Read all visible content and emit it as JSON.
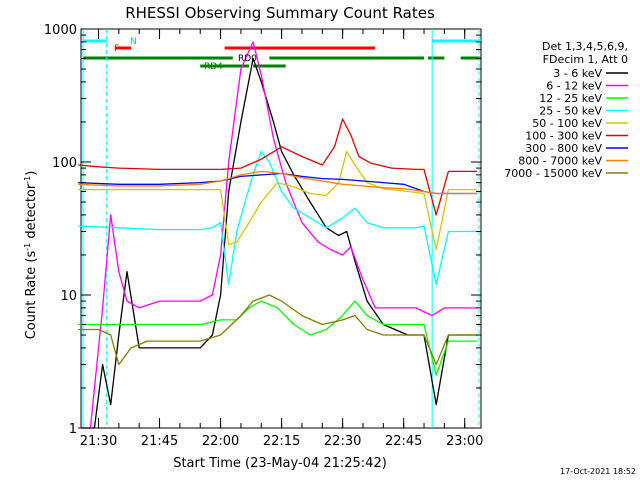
{
  "chart_data": {
    "type": "line",
    "title": "RHESSI Observing Summary Count Rates",
    "xlabel": "Start Time (23-May-04 21:25:42)",
    "ylabel_main": "Count Rate (s",
    "ylabel_sup1": "-1",
    "ylabel_mid": " detector",
    "ylabel_sup2": "-1",
    "ylabel_end": ")",
    "y_scale": "log",
    "ylim": [
      1,
      1000
    ],
    "xlim": [
      "21:25:42",
      "23:04:00"
    ],
    "x_ticks": [
      "21:30",
      "21:45",
      "22:00",
      "22:15",
      "22:30",
      "22:45",
      "23:00"
    ],
    "y_ticks": [
      "1",
      "10",
      "100",
      "1000"
    ],
    "legend_header": [
      "Det 1,3,4,5,6,9,",
      "FDecim 1, Att 0"
    ],
    "footer_date": "17-Oct-2021 18:52",
    "flag_labels": {
      "n": "N",
      "f": "F",
      "rd0": "RD0",
      "rd4": "RD4"
    },
    "colors": {
      "band_3_6": "#000000",
      "band_6_12": "#ff00ff",
      "band_12_25": "#00ff00",
      "band_25_50": "#00ffff",
      "band_50_100": "#d2c800",
      "band_100_300": "#e80000",
      "band_300_800": "#0000ff",
      "band_800_7000": "#ff8000",
      "band_7000_15000": "#808000",
      "saa_flag": "#00ffff",
      "flare_flag": "#ff0000",
      "decim_flag": "#008000"
    },
    "series": [
      {
        "name": "3 - 6 keV",
        "color": "#000000",
        "x": [
          "21:25",
          "21:29",
          "21:31",
          "21:33",
          "21:35",
          "21:37",
          "21:40",
          "21:45",
          "21:55",
          "21:58",
          "22:00",
          "22:02",
          "22:05",
          "22:08",
          "22:10",
          "22:13",
          "22:15",
          "22:18",
          "22:22",
          "22:26",
          "22:29",
          "22:31",
          "22:33",
          "22:36",
          "22:40",
          "22:46",
          "22:50",
          "22:53",
          "22:56",
          "23:00",
          "23:03"
        ],
        "y": [
          1,
          1,
          3,
          1.5,
          5,
          15,
          4,
          4,
          4,
          5,
          10,
          60,
          200,
          600,
          400,
          200,
          120,
          80,
          50,
          32,
          28,
          30,
          18,
          9,
          6,
          5,
          5,
          1.5,
          5,
          5,
          5
        ]
      },
      {
        "name": "6 - 12 keV",
        "color": "#ff00ff",
        "x": [
          "21:25",
          "21:28",
          "21:31",
          "21:33",
          "21:35",
          "21:37",
          "21:40",
          "21:45",
          "21:55",
          "21:58",
          "22:00",
          "22:02",
          "22:05",
          "22:08",
          "22:10",
          "22:13",
          "22:16",
          "22:20",
          "22:24",
          "22:27",
          "22:30",
          "22:32",
          "22:35",
          "22:38",
          "22:42",
          "22:45",
          "22:48",
          "22:52",
          "22:55",
          "23:00",
          "23:03"
        ],
        "y": [
          1,
          1,
          8,
          40,
          15,
          9,
          8,
          9,
          9,
          10,
          20,
          100,
          500,
          800,
          450,
          150,
          70,
          35,
          25,
          22,
          20,
          23,
          13,
          8,
          8,
          8,
          8,
          7,
          8,
          8,
          8
        ]
      },
      {
        "name": "12 - 25 keV",
        "color": "#00ff00",
        "x": [
          "21:25",
          "21:35",
          "21:45",
          "21:55",
          "22:00",
          "22:04",
          "22:07",
          "22:10",
          "22:14",
          "22:18",
          "22:22",
          "22:26",
          "22:30",
          "22:33",
          "22:36",
          "22:40",
          "22:46",
          "22:50",
          "22:53",
          "22:56",
          "23:00",
          "23:03"
        ],
        "y": [
          6,
          6,
          6,
          6,
          6.5,
          6.5,
          8,
          9,
          8,
          6,
          5,
          5.5,
          7,
          9,
          7,
          6,
          6,
          6,
          2.5,
          4.5,
          4.5,
          4.5
        ]
      },
      {
        "name": "25 - 50 keV",
        "color": "#00ffff",
        "x": [
          "21:25",
          "21:35",
          "21:45",
          "21:55",
          "21:58",
          "22:00",
          "22:02",
          "22:04",
          "22:06",
          "22:08",
          "22:10",
          "22:12",
          "22:15",
          "22:18",
          "22:22",
          "22:26",
          "22:30",
          "22:33",
          "22:36",
          "22:40",
          "22:45",
          "22:48",
          "22:50",
          "22:53",
          "22:56",
          "23:00",
          "23:03"
        ],
        "y": [
          33,
          32,
          31,
          31,
          32,
          35,
          12,
          30,
          50,
          80,
          120,
          100,
          60,
          45,
          38,
          32,
          38,
          45,
          35,
          32,
          32,
          32,
          33,
          12,
          30,
          30,
          30
        ]
      },
      {
        "name": "50 - 100 keV",
        "color": "#d2c800",
        "x": [
          "21:25",
          "21:35",
          "21:45",
          "21:55",
          "22:00",
          "22:02",
          "22:04",
          "22:07",
          "22:10",
          "22:14",
          "22:18",
          "22:22",
          "22:26",
          "22:29",
          "22:31",
          "22:33",
          "22:36",
          "22:40",
          "22:46",
          "22:50",
          "22:53",
          "22:56",
          "23:00",
          "23:03"
        ],
        "y": [
          62,
          62,
          62,
          62,
          62,
          24,
          25,
          35,
          50,
          70,
          65,
          58,
          56,
          70,
          120,
          95,
          70,
          63,
          60,
          58,
          22,
          62,
          62,
          62
        ]
      },
      {
        "name": "100 - 300 keV",
        "color": "#e80000",
        "x": [
          "21:25",
          "21:30",
          "21:35",
          "21:45",
          "21:55",
          "22:00",
          "22:05",
          "22:10",
          "22:15",
          "22:20",
          "22:25",
          "22:28",
          "22:30",
          "22:32",
          "22:34",
          "22:37",
          "22:42",
          "22:48",
          "22:50",
          "22:53",
          "22:56",
          "23:00",
          "23:03"
        ],
        "y": [
          95,
          92,
          90,
          88,
          88,
          88,
          90,
          105,
          130,
          110,
          95,
          130,
          210,
          160,
          110,
          98,
          90,
          88,
          88,
          40,
          85,
          85,
          85
        ]
      },
      {
        "name": "300 - 800 keV",
        "color": "#0000ff",
        "x": [
          "21:25",
          "21:35",
          "21:45",
          "21:55",
          "22:00",
          "22:05",
          "22:10",
          "22:15",
          "22:20",
          "22:25",
          "22:30",
          "22:35",
          "22:40",
          "22:45",
          "22:50",
          "22:53",
          "22:56",
          "23:00",
          "23:03"
        ],
        "y": [
          70,
          68,
          68,
          70,
          72,
          78,
          80,
          82,
          78,
          75,
          74,
          72,
          70,
          68,
          60,
          58,
          58,
          58,
          58
        ]
      },
      {
        "name": "800 - 7000 keV",
        "color": "#ff8000",
        "x": [
          "21:25",
          "21:35",
          "21:45",
          "21:55",
          "22:00",
          "22:05",
          "22:10",
          "22:15",
          "22:20",
          "22:25",
          "22:30",
          "22:35",
          "22:40",
          "22:45",
          "22:50",
          "22:53",
          "22:56",
          "23:00",
          "23:03"
        ],
        "y": [
          68,
          66,
          66,
          68,
          72,
          80,
          85,
          82,
          76,
          72,
          68,
          66,
          64,
          63,
          60,
          58,
          58,
          58,
          58
        ]
      },
      {
        "name": "7000 - 15000 keV",
        "color": "#808000",
        "x": [
          "21:25",
          "21:30",
          "21:33",
          "21:35",
          "21:38",
          "21:42",
          "21:48",
          "21:55",
          "22:00",
          "22:05",
          "22:08",
          "22:12",
          "22:15",
          "22:20",
          "22:25",
          "22:30",
          "22:33",
          "22:36",
          "22:40",
          "22:46",
          "22:50",
          "22:53",
          "22:56",
          "23:00",
          "23:03"
        ],
        "y": [
          5.5,
          5.5,
          5,
          3,
          4,
          4.5,
          4.5,
          4.5,
          5,
          7,
          9,
          10,
          9,
          7,
          6,
          6.5,
          7,
          5.5,
          5,
          5,
          5,
          3,
          5,
          5,
          5
        ]
      }
    ],
    "flag_bars": [
      {
        "name": "SAA",
        "color": "#00ffff",
        "segments": [
          [
            "21:25",
            "21:32"
          ],
          [
            "22:52",
            "23:04"
          ]
        ]
      },
      {
        "name": "Flare",
        "color": "#ff0000",
        "segments": [
          [
            "21:34",
            "21:38"
          ],
          [
            "22:01",
            "22:38"
          ]
        ]
      },
      {
        "name": "Decim",
        "color": "#008000",
        "segments": [
          [
            "21:25",
            "22:03"
          ],
          [
            "22:12",
            "22:50"
          ],
          [
            "22:51",
            "22:55"
          ],
          [
            "22:59",
            "23:04"
          ]
        ]
      },
      {
        "name": "Decim2",
        "color": "#008000",
        "segments": [
          [
            "21:55",
            "22:07"
          ],
          [
            "22:08",
            "22:16"
          ]
        ]
      }
    ]
  }
}
